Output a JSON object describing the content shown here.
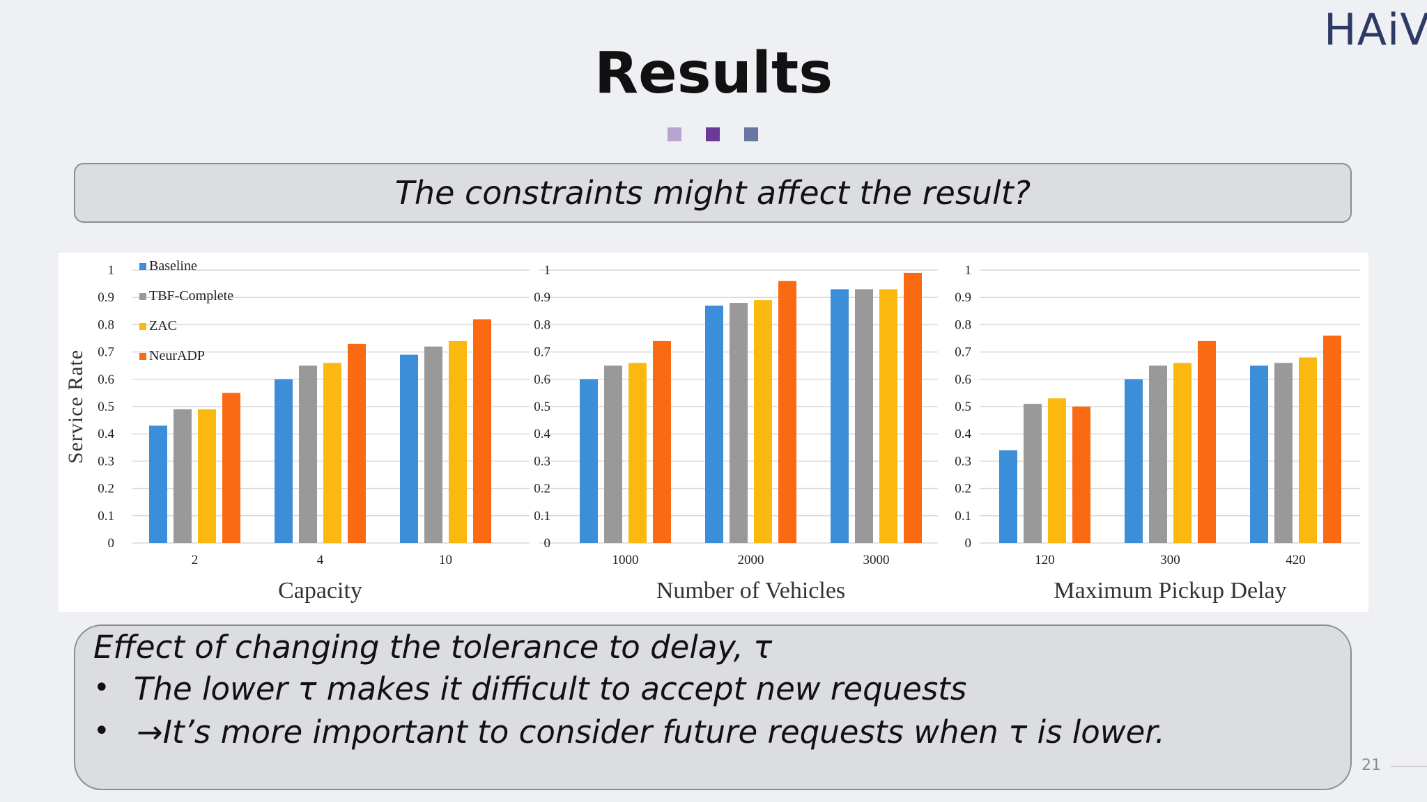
{
  "logo": "HAiV",
  "title": "Results",
  "dots": [
    "#b9a3d1",
    "#6a3a96",
    "#6677a0"
  ],
  "question": "The constraints might affect the result?",
  "effect": {
    "line1": "Effect of changing the tolerance to delay, τ",
    "bullet": "•",
    "line2": "The lower τ makes it difficult to accept new requests",
    "line3": "→It’s more important to consider future requests when τ is lower."
  },
  "page_number": "21",
  "colors": [
    "#3d8ed8",
    "#999999",
    "#fbb80f",
    "#fa6a12"
  ],
  "chart_data": [
    {
      "type": "bar",
      "xlabel": "Capacity",
      "ylabel": "Service Rate",
      "categories": [
        "2",
        "4",
        "10"
      ],
      "ylim": [
        0,
        1
      ],
      "yticks": [
        "0",
        "0.1",
        "0.2",
        "0.3",
        "0.4",
        "0.5",
        "0.6",
        "0.7",
        "0.8",
        "0.9",
        "1"
      ],
      "legend": "top-left",
      "grid": true,
      "series": [
        {
          "name": "Baseline",
          "values": [
            0.43,
            0.6,
            0.69
          ]
        },
        {
          "name": "TBF-Complete",
          "values": [
            0.49,
            0.65,
            0.72
          ]
        },
        {
          "name": "ZAC",
          "values": [
            0.49,
            0.66,
            0.74
          ]
        },
        {
          "name": "NeurADP",
          "values": [
            0.55,
            0.73,
            0.82
          ]
        }
      ]
    },
    {
      "type": "bar",
      "xlabel": "Number of Vehicles",
      "categories": [
        "1000",
        "2000",
        "3000"
      ],
      "ylim": [
        0,
        1
      ],
      "yticks": [
        "0",
        "0.1",
        "0.2",
        "0.3",
        "0.4",
        "0.5",
        "0.6",
        "0.7",
        "0.8",
        "0.9",
        "1"
      ],
      "grid": true,
      "series": [
        {
          "values": [
            0.6,
            0.87,
            0.93
          ]
        },
        {
          "values": [
            0.65,
            0.88,
            0.93
          ]
        },
        {
          "values": [
            0.66,
            0.89,
            0.93
          ]
        },
        {
          "values": [
            0.74,
            0.96,
            0.99
          ]
        }
      ]
    },
    {
      "type": "bar",
      "xlabel": "Maximum Pickup Delay",
      "categories": [
        "120",
        "300",
        "420"
      ],
      "ylim": [
        0,
        1
      ],
      "yticks": [
        "0",
        "0.1",
        "0.2",
        "0.3",
        "0.4",
        "0.5",
        "0.6",
        "0.7",
        "0.8",
        "0.9",
        "1"
      ],
      "grid": true,
      "series": [
        {
          "values": [
            0.34,
            0.6,
            0.65
          ]
        },
        {
          "values": [
            0.51,
            0.65,
            0.66
          ]
        },
        {
          "values": [
            0.53,
            0.66,
            0.68
          ]
        },
        {
          "values": [
            0.5,
            0.74,
            0.76
          ]
        }
      ]
    }
  ]
}
